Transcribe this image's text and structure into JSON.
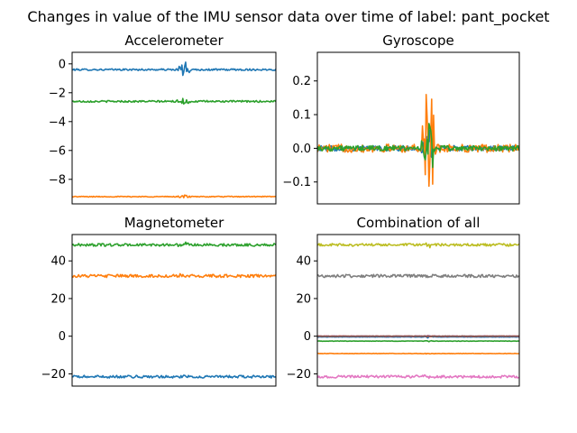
{
  "figure": {
    "suptitle": "Changes in value of the IMU sensor data over time of label: pant_pocket"
  },
  "colors": {
    "blue": "#1f77b4",
    "orange": "#ff7f0e",
    "green": "#2ca02c",
    "red": "#d62728",
    "purple": "#9467bd",
    "brown": "#8c564b",
    "pink": "#e377c2",
    "gray": "#7f7f7f",
    "olive": "#bcbd22"
  },
  "chart_data": [
    {
      "type": "line",
      "title": "Accelerometer",
      "xlabel": "",
      "ylabel": "",
      "x_ticks_visible": false,
      "yticks": [
        0,
        -2,
        -4,
        -6,
        -8
      ],
      "ytick_labels": [
        "0",
        "−2",
        "−4",
        "−6",
        "−8"
      ],
      "ylim": [
        -9.7,
        0.8
      ],
      "grid": false,
      "series": [
        {
          "color": "blue",
          "baseline": -0.4,
          "noise": 0.06,
          "spike_at": 0.55,
          "spike_amp": 0.6
        },
        {
          "color": "green",
          "baseline": -2.6,
          "noise": 0.06,
          "spike_at": 0.55,
          "spike_amp": 0.3
        },
        {
          "color": "orange",
          "baseline": -9.2,
          "noise": 0.03,
          "spike_at": 0.55,
          "spike_amp": 0.15
        }
      ]
    },
    {
      "type": "line",
      "title": "Gyroscope",
      "xlabel": "",
      "ylabel": "",
      "x_ticks_visible": false,
      "yticks": [
        0.2,
        0.1,
        0.0,
        -0.1
      ],
      "ytick_labels": [
        "0.2",
        "0.1",
        "0.0",
        "−0.1"
      ],
      "ylim": [
        -0.165,
        0.285
      ],
      "grid": false,
      "series": [
        {
          "color": "blue",
          "baseline": 0.0,
          "noise": 0.008,
          "spike_at": 0.55,
          "spike_amp": 0.06
        },
        {
          "color": "orange",
          "baseline": 0.0,
          "noise": 0.012,
          "spike_at": 0.55,
          "spike_amp": 0.26
        },
        {
          "color": "green",
          "baseline": 0.0,
          "noise": 0.008,
          "spike_at": 0.55,
          "spike_amp": 0.11
        }
      ]
    },
    {
      "type": "line",
      "title": "Magnetometer",
      "xlabel": "",
      "ylabel": "",
      "x_ticks_visible": false,
      "yticks": [
        40,
        20,
        0,
        -20
      ],
      "ytick_labels": [
        "40",
        "20",
        "0",
        "−20"
      ],
      "ylim": [
        -26.5,
        54
      ],
      "grid": false,
      "series": [
        {
          "color": "green",
          "baseline": 48.5,
          "noise": 0.7,
          "spike_at": 0.55,
          "spike_amp": 1.0
        },
        {
          "color": "orange",
          "baseline": 32.0,
          "noise": 0.8,
          "spike_at": 0.55,
          "spike_amp": 1.0
        },
        {
          "color": "blue",
          "baseline": -21.5,
          "noise": 0.7,
          "spike_at": 0.55,
          "spike_amp": 0.8
        }
      ]
    },
    {
      "type": "line",
      "title": "Combination of all",
      "xlabel": "",
      "ylabel": "",
      "x_ticks_visible": false,
      "yticks": [
        40,
        20,
        0,
        -20
      ],
      "ytick_labels": [
        "40",
        "20",
        "0",
        "−20"
      ],
      "ylim": [
        -26.5,
        54
      ],
      "grid": false,
      "series": [
        {
          "color": "olive",
          "baseline": 48.5,
          "noise": 0.7,
          "spike_at": 0.55,
          "spike_amp": 1.0
        },
        {
          "color": "gray",
          "baseline": 32.0,
          "noise": 0.8,
          "spike_at": 0.55,
          "spike_amp": 1.0
        },
        {
          "color": "blue",
          "baseline": -0.4,
          "noise": 0.1,
          "spike_at": 0.55,
          "spike_amp": 0.5
        },
        {
          "color": "red",
          "baseline": 0.0,
          "noise": 0.1,
          "spike_at": 0.55,
          "spike_amp": 0.3
        },
        {
          "color": "purple",
          "baseline": 0.0,
          "noise": 0.1,
          "spike_at": 0.55,
          "spike_amp": 0.3
        },
        {
          "color": "brown",
          "baseline": 0.0,
          "noise": 0.1,
          "spike_at": 0.55,
          "spike_amp": 0.3
        },
        {
          "color": "green",
          "baseline": -2.6,
          "noise": 0.1,
          "spike_at": 0.55,
          "spike_amp": 0.3
        },
        {
          "color": "orange",
          "baseline": -9.2,
          "noise": 0.1,
          "spike_at": 0.55,
          "spike_amp": 0.3
        },
        {
          "color": "pink",
          "baseline": -21.5,
          "noise": 0.7,
          "spike_at": 0.55,
          "spike_amp": 0.8
        }
      ]
    }
  ]
}
